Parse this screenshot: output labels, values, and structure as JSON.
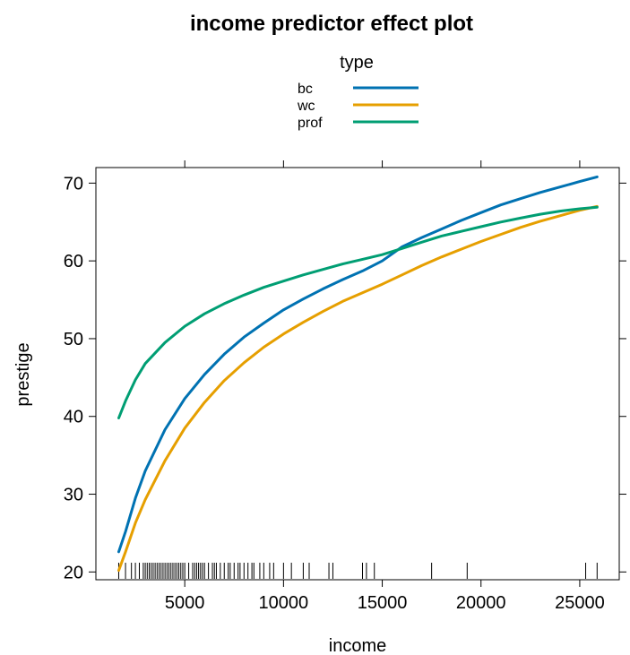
{
  "chart_data": {
    "type": "line",
    "title": "income predictor effect plot",
    "xlabel": "income",
    "ylabel": "prestige",
    "xlim": [
      500,
      27000
    ],
    "ylim": [
      19,
      72
    ],
    "x_ticks": [
      5000,
      10000,
      15000,
      20000,
      25000
    ],
    "y_ticks": [
      20,
      30,
      40,
      50,
      60,
      70
    ],
    "grid": false,
    "legend": {
      "title": "type",
      "placement": "top",
      "entries": [
        "bc",
        "wc",
        "prof"
      ]
    },
    "series": [
      {
        "name": "bc",
        "color": "#0072B2",
        "x": [
          1656,
          2000,
          2500,
          3000,
          4000,
          5000,
          6000,
          7000,
          8000,
          9000,
          10000,
          11000,
          12000,
          13000,
          14000,
          15000,
          16000,
          17000,
          18000,
          19000,
          20000,
          21000,
          22000,
          23000,
          24000,
          25000,
          25879
        ],
        "y": [
          22.6,
          25.2,
          29.5,
          33.0,
          38.3,
          42.3,
          45.4,
          48.0,
          50.2,
          52.0,
          53.7,
          55.1,
          56.4,
          57.6,
          58.7,
          60.0,
          61.8,
          63.0,
          64.1,
          65.2,
          66.2,
          67.2,
          68.0,
          68.8,
          69.5,
          70.2,
          70.8
        ]
      },
      {
        "name": "wc",
        "color": "#E69F00",
        "x": [
          1656,
          2000,
          2500,
          3000,
          4000,
          5000,
          6000,
          7000,
          8000,
          9000,
          10000,
          11000,
          12000,
          13000,
          14000,
          15000,
          16000,
          17000,
          18000,
          19000,
          20000,
          21000,
          22000,
          23000,
          24000,
          25000,
          25879
        ],
        "y": [
          20.2,
          22.6,
          26.3,
          29.3,
          34.3,
          38.5,
          41.8,
          44.6,
          46.9,
          48.9,
          50.6,
          52.1,
          53.5,
          54.8,
          55.9,
          57.0,
          58.2,
          59.4,
          60.5,
          61.5,
          62.5,
          63.4,
          64.3,
          65.1,
          65.8,
          66.5,
          67.0
        ]
      },
      {
        "name": "prof",
        "color": "#009E73",
        "x": [
          1656,
          2000,
          2500,
          3000,
          4000,
          5000,
          6000,
          7000,
          8000,
          9000,
          10000,
          11000,
          12000,
          13000,
          14000,
          15000,
          16000,
          17000,
          18000,
          19000,
          20000,
          21000,
          22000,
          23000,
          24000,
          25000,
          25879
        ],
        "y": [
          39.8,
          42.0,
          44.7,
          46.8,
          49.5,
          51.6,
          53.2,
          54.5,
          55.6,
          56.6,
          57.4,
          58.2,
          58.9,
          59.6,
          60.2,
          60.8,
          61.6,
          62.4,
          63.2,
          63.8,
          64.4,
          65.0,
          65.5,
          66.0,
          66.4,
          66.7,
          66.9
        ]
      }
    ],
    "rug": [
      1656,
      2000,
      2300,
      2500,
      2700,
      2900,
      3000,
      3100,
      3200,
      3300,
      3400,
      3500,
      3600,
      3700,
      3800,
      3900,
      4000,
      4100,
      4200,
      4300,
      4400,
      4500,
      4600,
      4700,
      4800,
      4900,
      5000,
      5200,
      5400,
      5500,
      5600,
      5700,
      5800,
      5900,
      6000,
      6200,
      6400,
      6500,
      6600,
      6800,
      7000,
      7200,
      7300,
      7500,
      7700,
      7800,
      8000,
      8200,
      8400,
      8500,
      8800,
      9000,
      9300,
      9500,
      10000,
      10400,
      11000,
      11300,
      12300,
      12500,
      14000,
      14200,
      14600,
      17500,
      19300,
      25300,
      25879
    ]
  }
}
